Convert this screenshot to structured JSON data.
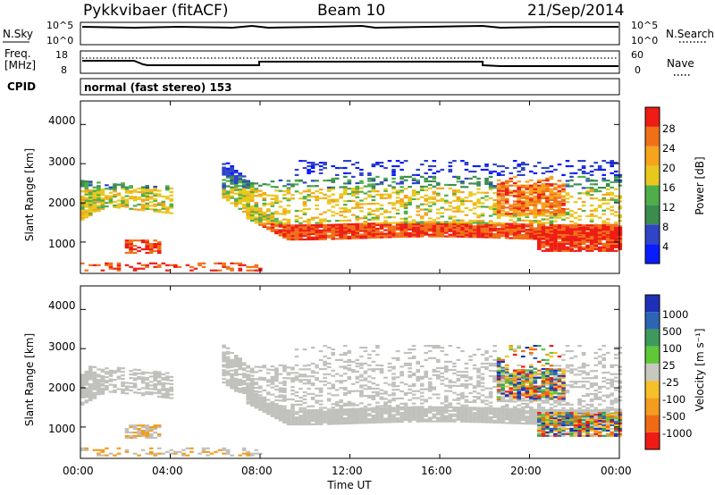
{
  "header": {
    "station": "Pykkvibaer (fitACF)",
    "beam": "Beam 10",
    "date": "21/Sep/2014"
  },
  "noise_panel": {
    "left_label": "N.Sky",
    "left_ticks": [
      "10^5",
      "10^0"
    ],
    "right_ticks": [
      "10^5",
      "10^0"
    ],
    "right_label": "N.Search"
  },
  "freq_panel": {
    "left_label_1": "Freq.",
    "left_label_2": "[MHz]",
    "left_ticks": [
      "18",
      "8"
    ],
    "right_ticks": [
      "60",
      "0"
    ],
    "right_label": "Nave"
  },
  "cpid": {
    "label": "CPID",
    "value": "normal (fast stereo) 153"
  },
  "colors": {
    "power_scale": [
      "#0a1cff",
      "#2f44c6",
      "#3c8c50",
      "#4fae4a",
      "#e8c81e",
      "#f5a41c",
      "#f07018",
      "#ee1c14"
    ],
    "velocity_scale": [
      "#ee1c14",
      "#f06a16",
      "#f39c1e",
      "#f5c02a",
      "#c8c8c0",
      "#60c838",
      "#3e9a5c",
      "#2d65b5",
      "#1f30b8"
    ],
    "ground_scatter": "#c0c0bc"
  },
  "chart_data": [
    {
      "type": "heatmap",
      "title": "Power",
      "ylabel": "Slant Range [km]",
      "xlabel": "",
      "x_ticks": [],
      "y_ticks": [
        "1000",
        "2000",
        "3000",
        "4000"
      ],
      "ylim": [
        200,
        4600
      ],
      "xlim_hours": [
        0,
        24
      ],
      "colorbar": {
        "label": "Power [dB]",
        "ticks": [
          "4",
          "8",
          "12",
          "16",
          "20",
          "24",
          "28"
        ],
        "range": [
          0,
          32
        ]
      }
    },
    {
      "type": "heatmap",
      "title": "Velocity",
      "ylabel": "Slant Range [km]",
      "xlabel": "Time UT",
      "x_ticks": [
        "00:00",
        "04:00",
        "08:00",
        "12:00",
        "16:00",
        "20:00",
        "00:00"
      ],
      "y_ticks": [
        "1000",
        "2000",
        "3000",
        "4000"
      ],
      "ylim": [
        200,
        4600
      ],
      "xlim_hours": [
        0,
        24
      ],
      "colorbar": {
        "label": "Velocity [m s⁻¹]",
        "ticks": [
          "1000",
          "500",
          "100",
          "25",
          "-25",
          "-100",
          "-500",
          "-1000"
        ]
      }
    }
  ]
}
